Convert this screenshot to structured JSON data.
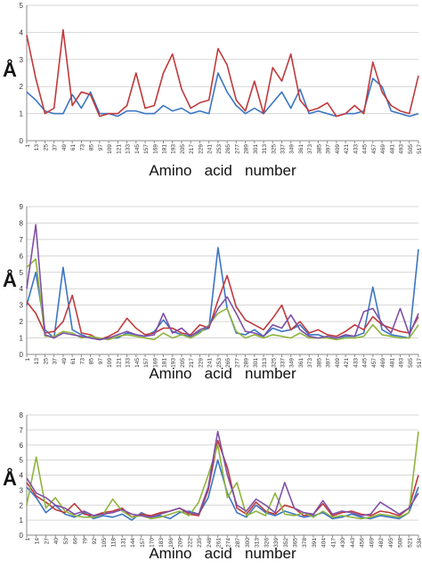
{
  "chart_data": [
    {
      "type": "line",
      "xlabel": "Amino   acid   number",
      "ylabel": "Å",
      "ylim": [
        0,
        5
      ],
      "yticks": [
        0,
        1,
        2,
        3,
        4,
        5
      ],
      "x": [
        1,
        13,
        25,
        37,
        49,
        61,
        73,
        85,
        97,
        109,
        121,
        133,
        145,
        157,
        169,
        181,
        193,
        205,
        217,
        229,
        241,
        253,
        265,
        277,
        289,
        301,
        313,
        325,
        337,
        349,
        361,
        373,
        385,
        397,
        409,
        421,
        433,
        445,
        457,
        469,
        481,
        493,
        505,
        517
      ],
      "xticklabels": [
        "1",
        "13",
        "25",
        "37",
        "49",
        "61",
        "73",
        "85",
        "97",
        "109",
        "121",
        "133",
        "145",
        "157",
        "169",
        "181",
        "193",
        "205",
        "217",
        "229",
        "241",
        "253",
        "265",
        "277",
        "289",
        "301",
        "313",
        "325",
        "337",
        "349",
        "361",
        "373",
        "385",
        "397",
        "409",
        "421",
        "433",
        "445",
        "457",
        "469",
        "481",
        "493",
        "505",
        "517"
      ],
      "grid": true,
      "series": [
        {
          "color": "#3b75c4",
          "values": [
            1.8,
            1.5,
            1.1,
            1.0,
            1.0,
            1.7,
            1.2,
            1.8,
            1.0,
            1.0,
            0.9,
            1.1,
            1.1,
            1.0,
            1.0,
            1.3,
            1.1,
            1.2,
            1.0,
            1.1,
            1.0,
            2.5,
            1.8,
            1.3,
            1.0,
            1.2,
            1.0,
            1.4,
            1.8,
            1.2,
            1.9,
            1.0,
            1.1,
            1.0,
            0.9,
            1.0,
            1.0,
            1.1,
            2.3,
            2.0,
            1.1,
            1.0,
            0.9,
            1.0
          ]
        },
        {
          "color": "#c0393b",
          "values": [
            3.9,
            2.3,
            1.0,
            1.2,
            4.1,
            1.3,
            1.8,
            1.7,
            0.9,
            1.0,
            1.0,
            1.3,
            2.5,
            1.2,
            1.3,
            2.5,
            3.2,
            1.9,
            1.2,
            1.4,
            1.5,
            3.4,
            2.8,
            1.5,
            1.1,
            2.2,
            1.0,
            2.7,
            2.2,
            3.2,
            1.5,
            1.1,
            1.2,
            1.4,
            0.9,
            1.0,
            1.3,
            1.0,
            2.9,
            1.8,
            1.3,
            1.1,
            1.0,
            2.4
          ]
        }
      ]
    },
    {
      "type": "line",
      "xlabel": "Amino   acid   number",
      "ylabel": "Å",
      "ylim": [
        0,
        9
      ],
      "yticks": [
        0,
        1,
        2,
        3,
        4,
        5,
        6,
        7,
        8,
        9
      ],
      "x": [
        1,
        13,
        25,
        37,
        49,
        61,
        73,
        85,
        97,
        109,
        121,
        133,
        145,
        157,
        169,
        181,
        193,
        205,
        217,
        229,
        241,
        253,
        265,
        277,
        289,
        301,
        313,
        325,
        337,
        349,
        361,
        373,
        385,
        397,
        409,
        421,
        433,
        445,
        457,
        469,
        481,
        493,
        505,
        517
      ],
      "xticklabels": [
        "1",
        "13",
        "25",
        "37",
        "49",
        "61",
        "73",
        "85",
        "97",
        "109",
        "121",
        "133",
        "145",
        "157",
        "169",
        "181",
        "193",
        "205",
        "217",
        "229",
        "241",
        "253",
        "265",
        "277",
        "289",
        "301",
        "313",
        "325",
        "337",
        "349",
        "361",
        "373",
        "385",
        "397",
        "409",
        "421",
        "433",
        "445",
        "457",
        "469",
        "481",
        "493",
        "505",
        "517"
      ],
      "grid": true,
      "series": [
        {
          "color": "#3b75c4",
          "values": [
            3.0,
            5.0,
            1.5,
            1.0,
            5.3,
            1.5,
            1.2,
            1.0,
            0.9,
            1.0,
            1.0,
            1.3,
            1.2,
            1.1,
            1.4,
            2.1,
            1.4,
            1.2,
            1.1,
            1.4,
            1.6,
            6.5,
            2.8,
            1.3,
            1.2,
            1.5,
            1.1,
            1.6,
            1.4,
            1.5,
            1.8,
            1.2,
            1.2,
            1.0,
            1.0,
            1.1,
            1.1,
            1.3,
            4.1,
            1.5,
            1.2,
            1.1,
            1.0,
            6.4
          ]
        },
        {
          "color": "#c0393b",
          "values": [
            3.2,
            2.5,
            1.3,
            1.4,
            2.0,
            3.6,
            1.3,
            1.2,
            0.9,
            1.1,
            1.4,
            2.2,
            1.6,
            1.2,
            1.3,
            1.6,
            1.6,
            1.3,
            1.2,
            1.8,
            1.6,
            3.3,
            4.8,
            2.9,
            2.1,
            1.8,
            1.5,
            2.2,
            3.0,
            1.5,
            2.0,
            1.3,
            1.5,
            1.2,
            1.1,
            1.4,
            1.8,
            1.5,
            2.3,
            1.8,
            1.6,
            1.4,
            1.3,
            2.3
          ]
        },
        {
          "color": "#8fb43e",
          "values": [
            5.3,
            5.8,
            1.1,
            1.1,
            1.4,
            1.3,
            1.0,
            1.1,
            1.0,
            0.9,
            1.1,
            1.2,
            1.1,
            1.0,
            0.9,
            1.3,
            1.0,
            1.2,
            1.0,
            1.3,
            1.8,
            2.5,
            2.8,
            1.4,
            1.0,
            1.2,
            1.0,
            1.2,
            1.1,
            1.0,
            1.3,
            1.0,
            1.0,
            1.0,
            0.9,
            1.0,
            1.0,
            1.1,
            1.8,
            1.2,
            1.1,
            1.0,
            1.0,
            1.8
          ]
        },
        {
          "color": "#7f4fa6",
          "values": [
            4.0,
            7.9,
            1.2,
            1.0,
            1.3,
            1.2,
            1.1,
            1.0,
            0.9,
            1.0,
            1.2,
            1.4,
            1.2,
            1.1,
            1.2,
            2.5,
            1.3,
            1.6,
            1.1,
            1.5,
            1.7,
            2.8,
            3.5,
            2.5,
            1.4,
            1.3,
            1.1,
            1.8,
            1.6,
            2.4,
            1.5,
            1.1,
            1.0,
            1.1,
            1.0,
            1.2,
            1.1,
            2.6,
            2.8,
            1.9,
            1.3,
            2.8,
            1.2,
            2.5
          ]
        }
      ]
    },
    {
      "type": "line",
      "xlabel": "Amino   acid   number",
      "ylabel": "Å",
      "ylim": [
        0,
        8
      ],
      "yticks": [
        0,
        1,
        2,
        3,
        4,
        5,
        6,
        7,
        8
      ],
      "x": [
        1,
        14,
        27,
        40,
        53,
        66,
        79,
        92,
        105,
        118,
        131,
        144,
        157,
        170,
        183,
        196,
        209,
        222,
        235,
        248,
        261,
        274,
        287,
        300,
        313,
        326,
        339,
        352,
        365,
        378,
        391,
        404,
        417,
        430,
        443,
        456,
        469,
        482,
        495,
        508,
        521,
        534
      ],
      "xticklabels": [
        "1",
        "14",
        "27",
        "40",
        "53",
        "66",
        "79",
        "92",
        "105",
        "118",
        "131",
        "144",
        "157",
        "170",
        "183",
        "196",
        "209",
        "222",
        "235",
        "248",
        "261",
        "274",
        "287",
        "300",
        "313",
        "326",
        "339",
        "352",
        "365",
        "378",
        "391",
        "404",
        "417",
        "430",
        "443",
        "456",
        "469",
        "482",
        "495",
        "508",
        "521",
        "534"
      ],
      "grid": true,
      "series": [
        {
          "color": "#3b75c4",
          "values": [
            3.2,
            2.5,
            1.5,
            2.0,
            1.4,
            1.2,
            1.5,
            1.1,
            1.3,
            1.2,
            1.4,
            1.0,
            1.5,
            1.2,
            1.3,
            1.1,
            1.5,
            1.6,
            1.4,
            2.5,
            5.0,
            2.8,
            1.5,
            1.2,
            2.0,
            1.5,
            1.3,
            1.6,
            1.4,
            1.2,
            1.3,
            1.5,
            1.1,
            1.2,
            1.4,
            1.2,
            1.1,
            1.3,
            1.2,
            1.1,
            1.5,
            3.2
          ]
        },
        {
          "color": "#c0393b",
          "values": [
            3.5,
            2.6,
            2.2,
            1.7,
            1.5,
            2.1,
            1.4,
            1.3,
            1.5,
            1.6,
            1.8,
            1.2,
            1.4,
            1.3,
            1.5,
            1.6,
            1.8,
            1.4,
            1.3,
            3.0,
            6.3,
            4.5,
            1.8,
            1.4,
            2.2,
            1.6,
            1.4,
            2.0,
            1.8,
            1.3,
            1.4,
            2.1,
            1.3,
            1.5,
            1.6,
            1.4,
            1.3,
            1.6,
            1.5,
            1.3,
            1.8,
            4.0
          ]
        },
        {
          "color": "#8fb43e",
          "values": [
            2.0,
            5.2,
            1.8,
            2.5,
            1.6,
            1.3,
            1.2,
            1.2,
            1.4,
            2.4,
            1.6,
            1.2,
            1.3,
            1.1,
            1.2,
            1.4,
            1.6,
            1.3,
            2.2,
            4.0,
            6.0,
            2.5,
            3.5,
            1.3,
            1.6,
            1.3,
            2.8,
            1.4,
            1.3,
            1.5,
            1.2,
            1.6,
            1.2,
            1.3,
            1.2,
            1.1,
            1.2,
            1.4,
            1.3,
            1.2,
            1.5,
            6.9
          ]
        },
        {
          "color": "#7f4fa6",
          "values": [
            3.8,
            2.8,
            2.5,
            2.0,
            1.8,
            1.4,
            1.6,
            1.3,
            1.4,
            1.5,
            1.7,
            1.4,
            1.3,
            1.2,
            1.4,
            1.6,
            1.8,
            1.5,
            1.4,
            3.2,
            6.9,
            4.0,
            2.0,
            1.6,
            2.4,
            2.0,
            1.5,
            3.5,
            1.8,
            1.5,
            1.4,
            2.3,
            1.4,
            1.6,
            1.5,
            1.3,
            1.4,
            2.2,
            1.8,
            1.4,
            1.8,
            2.8
          ]
        }
      ]
    }
  ]
}
